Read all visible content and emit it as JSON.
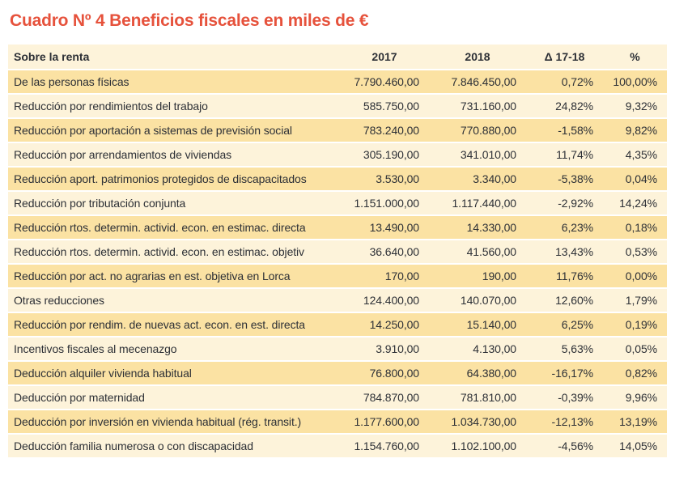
{
  "title": "Cuadro Nº 4 Beneficios fiscales en miles de €",
  "colors": {
    "title": "#e6523c",
    "row_dark": "#fbe2a3",
    "row_light": "#fdf3da",
    "header_bg": "#fdf3da",
    "text": "#2d3036",
    "page_bg": "#ffffff"
  },
  "table": {
    "columns": [
      "Sobre la renta",
      "2017",
      "2018",
      "Δ 17-18",
      "%"
    ],
    "rows": [
      [
        "De las personas físicas",
        "7.790.460,00",
        "7.846.450,00",
        "0,72%",
        "100,00%"
      ],
      [
        "Reducción por rendimientos del trabajo",
        "585.750,00",
        "731.160,00",
        "24,82%",
        "9,32%"
      ],
      [
        "Reducción por aportación a sistemas de previsión social",
        "783.240,00",
        "770.880,00",
        "-1,58%",
        "9,82%"
      ],
      [
        "Reducción por arrendamientos de viviendas",
        "305.190,00",
        "341.010,00",
        "11,74%",
        "4,35%"
      ],
      [
        "Reducción aport. patrimonios protegidos de discapacitados",
        "3.530,00",
        "3.340,00",
        "-5,38%",
        "0,04%"
      ],
      [
        "Reducción por tributación conjunta",
        "1.151.000,00",
        "1.117.440,00",
        "-2,92%",
        "14,24%"
      ],
      [
        "Reducción rtos. determin. activid. econ. en estimac. directa",
        "13.490,00",
        "14.330,00",
        "6,23%",
        "0,18%"
      ],
      [
        "Reducción rtos. determin. activid. econ. en estimac. objetiv",
        "36.640,00",
        "41.560,00",
        "13,43%",
        "0,53%"
      ],
      [
        "Reducción por act. no agrarias en est. objetiva en Lorca",
        "170,00",
        "190,00",
        "11,76%",
        "0,00%"
      ],
      [
        "Otras reducciones",
        "124.400,00",
        "140.070,00",
        "12,60%",
        "1,79%"
      ],
      [
        "Reducción por rendim. de nuevas act. econ. en est. directa",
        "14.250,00",
        "15.140,00",
        "6,25%",
        "0,19%"
      ],
      [
        "Incentivos fiscales al mecenazgo",
        "3.910,00",
        "4.130,00",
        "5,63%",
        "0,05%"
      ],
      [
        "Deducción alquiler vivienda habitual",
        "76.800,00",
        "64.380,00",
        "-16,17%",
        "0,82%"
      ],
      [
        "Deducción por maternidad",
        "784.870,00",
        "781.810,00",
        "-0,39%",
        "9,96%"
      ],
      [
        "Deducción por inversión en vivienda habitual (rég. transit.)",
        "1.177.600,00",
        "1.034.730,00",
        "-12,13%",
        "13,19%"
      ],
      [
        "Deducción familia numerosa o con discapacidad",
        "1.154.760,00",
        "1.102.100,00",
        "-4,56%",
        "14,05%"
      ]
    ]
  }
}
